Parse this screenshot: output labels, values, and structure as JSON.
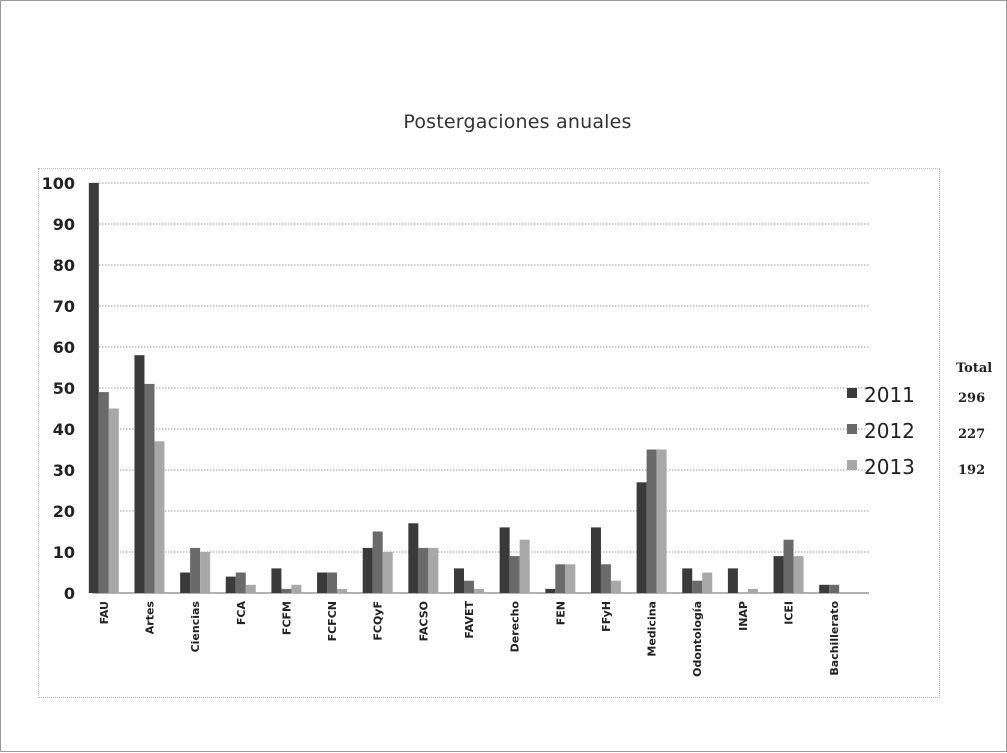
{
  "chart_data": {
    "type": "bar",
    "title": "Postergaciones anuales",
    "xlabel": "",
    "ylabel": "",
    "ylim": [
      0,
      100
    ],
    "yticks": [
      0,
      10,
      20,
      30,
      40,
      50,
      60,
      70,
      80,
      90,
      100
    ],
    "grid": true,
    "legend_position": "right",
    "categories": [
      "FAU",
      "Artes",
      "Ciencias",
      "FCA",
      "FCFM",
      "FCFCN",
      "FCQyF",
      "FACSO",
      "FAVET",
      "Derecho",
      "FEN",
      "FFyH",
      "Medicina",
      "Odontología",
      "INAP",
      "ICEI",
      "Bachillerato"
    ],
    "series": [
      {
        "name": "2011",
        "color": "#3a3a3a",
        "values": [
          100,
          58,
          5,
          4,
          6,
          5,
          11,
          17,
          6,
          16,
          1,
          16,
          27,
          6,
          6,
          9,
          2
        ]
      },
      {
        "name": "2012",
        "color": "#6a6a6a",
        "values": [
          49,
          51,
          11,
          5,
          1,
          5,
          15,
          11,
          3,
          9,
          7,
          7,
          35,
          3,
          0,
          13,
          2
        ]
      },
      {
        "name": "2013",
        "color": "#a8a8a8",
        "values": [
          45,
          37,
          10,
          2,
          2,
          1,
          10,
          11,
          1,
          13,
          7,
          3,
          35,
          5,
          1,
          9,
          0
        ]
      }
    ],
    "totals_header": "Total",
    "totals": [
      "296",
      "227",
      "192"
    ]
  }
}
